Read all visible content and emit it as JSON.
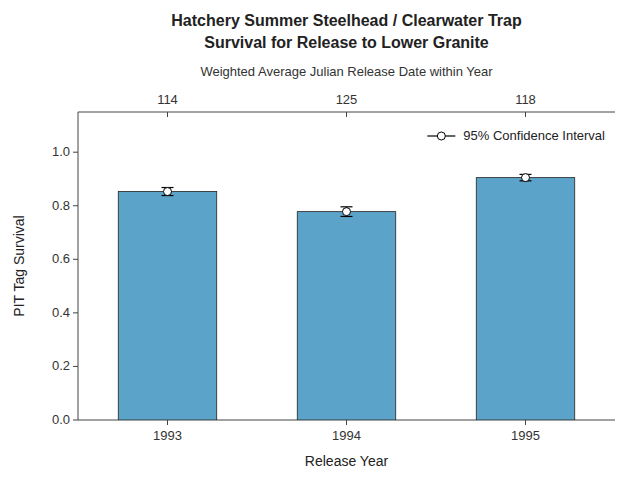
{
  "chart_data": {
    "type": "bar",
    "title": "Hatchery Summer Steelhead  / Clearwater Trap",
    "subtitle": "Survival for Release to Lower Granite",
    "x2label": "Weighted Average Julian Release Date within Year",
    "x2categories": [
      "114",
      "125",
      "118"
    ],
    "xlabel": "Release Year",
    "ylabel": "PIT Tag Survival",
    "categories": [
      "1993",
      "1994",
      "1995"
    ],
    "values": [
      0.853,
      0.778,
      0.905
    ],
    "error_low": [
      0.015,
      0.018,
      0.012
    ],
    "error_high": [
      0.015,
      0.018,
      0.012
    ],
    "error_label": "95% Confidence Interval",
    "color": "#5BA3C9",
    "ylim": [
      0,
      1.15
    ],
    "yticks": [
      {
        "value": 0,
        "label": "0.0"
      },
      0.2,
      0.4,
      0.6,
      0.8,
      {
        "value": 1.0,
        "label": "1.0"
      }
    ],
    "grid": false,
    "legend": "upper right"
  }
}
